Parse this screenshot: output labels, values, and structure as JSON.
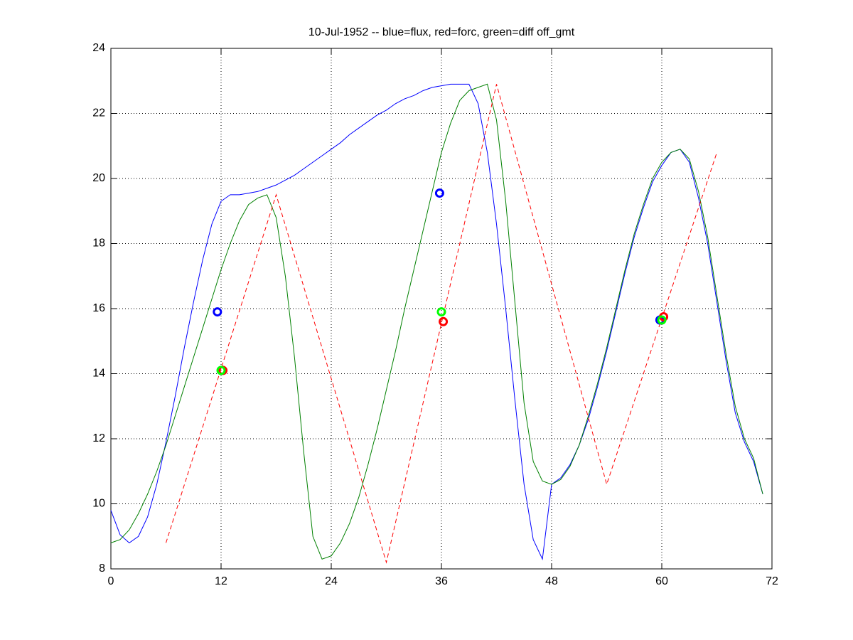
{
  "chart_data": {
    "type": "line",
    "title": "10-Jul-1952 -- blue=flux, red=forc, green=diff off_gmt",
    "xlim": [
      0,
      72
    ],
    "xticks": [
      0,
      12,
      24,
      36,
      48,
      60,
      72
    ],
    "ylim": [
      8,
      24
    ],
    "yticks": [
      8,
      10,
      12,
      14,
      16,
      18,
      20,
      22,
      24
    ],
    "grid": true,
    "series": [
      {
        "color": "#0000ff",
        "style": "solid",
        "x": [
          0,
          1,
          2,
          3,
          4,
          5,
          6,
          7,
          8,
          9,
          10,
          11,
          12,
          13,
          14,
          15,
          16,
          17,
          18,
          19,
          20,
          21,
          22,
          23,
          24,
          25,
          26,
          27,
          28,
          29,
          30,
          31,
          32,
          33,
          34,
          35,
          36,
          37,
          38,
          39,
          40,
          41,
          42,
          43,
          44,
          45,
          46,
          47,
          48,
          49,
          50,
          51,
          52,
          53,
          54,
          55,
          56,
          57,
          58,
          59,
          60,
          61,
          62,
          63,
          64,
          65,
          66,
          67,
          68,
          69,
          70,
          71
        ],
        "values": [
          9.8,
          9.05,
          8.8,
          9.0,
          9.6,
          10.6,
          11.9,
          13.3,
          14.8,
          16.2,
          17.5,
          18.6,
          19.3,
          19.5,
          19.5,
          19.55,
          19.6,
          19.7,
          19.8,
          19.95,
          20.1,
          20.3,
          20.5,
          20.7,
          20.9,
          21.1,
          21.35,
          21.55,
          21.75,
          21.95,
          22.1,
          22.3,
          22.45,
          22.55,
          22.7,
          22.8,
          22.85,
          22.9,
          22.9,
          22.9,
          22.3,
          20.8,
          18.6,
          16.0,
          13.2,
          10.6,
          8.9,
          8.3,
          10.6,
          10.8,
          11.2,
          11.8,
          12.6,
          13.6,
          14.7,
          15.9,
          17.1,
          18.2,
          19.1,
          19.9,
          20.4,
          20.8,
          20.9,
          20.5,
          19.4,
          18.0,
          16.2,
          14.4,
          12.8,
          11.9,
          11.3,
          10.3
        ]
      },
      {
        "color": "#008000",
        "style": "solid",
        "x": [
          0,
          1,
          2,
          3,
          4,
          5,
          6,
          7,
          8,
          9,
          10,
          11,
          12,
          13,
          14,
          15,
          16,
          17,
          18,
          19,
          20,
          21,
          22,
          23,
          24,
          25,
          26,
          27,
          28,
          29,
          30,
          31,
          32,
          33,
          34,
          35,
          36,
          37,
          38,
          39,
          40,
          41,
          42,
          43,
          44,
          45,
          46,
          47,
          48,
          49,
          50,
          51,
          52,
          53,
          54,
          55,
          56,
          57,
          58,
          59,
          60,
          61,
          62,
          63,
          64,
          65,
          66,
          67,
          68,
          69,
          70,
          71
        ],
        "values": [
          8.8,
          8.9,
          9.2,
          9.7,
          10.3,
          11.0,
          11.8,
          12.7,
          13.6,
          14.5,
          15.4,
          16.3,
          17.2,
          18.0,
          18.7,
          19.2,
          19.4,
          19.5,
          18.8,
          17.0,
          14.5,
          11.6,
          9.0,
          8.3,
          8.4,
          8.8,
          9.4,
          10.2,
          11.2,
          12.3,
          13.5,
          14.7,
          16.0,
          17.2,
          18.4,
          19.6,
          20.8,
          21.7,
          22.4,
          22.7,
          22.8,
          22.9,
          21.8,
          19.3,
          16.2,
          13.1,
          11.3,
          10.7,
          10.6,
          10.75,
          11.15,
          11.8,
          12.7,
          13.7,
          14.8,
          16.0,
          17.2,
          18.3,
          19.2,
          20.0,
          20.5,
          20.8,
          20.9,
          20.6,
          19.6,
          18.2,
          16.4,
          14.6,
          13.0,
          12.0,
          11.4,
          10.3
        ]
      },
      {
        "color": "#ff0000",
        "style": "dashed",
        "x": [
          6,
          18,
          30,
          42,
          54,
          66
        ],
        "values": [
          8.8,
          19.5,
          8.2,
          22.9,
          10.6,
          20.8
        ]
      }
    ],
    "points": [
      {
        "color": "#0000ff",
        "x": [
          11.6,
          35.8,
          59.8
        ],
        "values": [
          15.9,
          19.55,
          15.65
        ]
      },
      {
        "color": "#ff0000",
        "x": [
          12.2,
          36.2,
          60.2
        ],
        "values": [
          14.1,
          15.6,
          15.75
        ]
      },
      {
        "color": "#00ff00",
        "x": [
          12.0,
          36.0,
          60.0
        ],
        "values": [
          14.1,
          15.9,
          15.65
        ]
      }
    ]
  }
}
